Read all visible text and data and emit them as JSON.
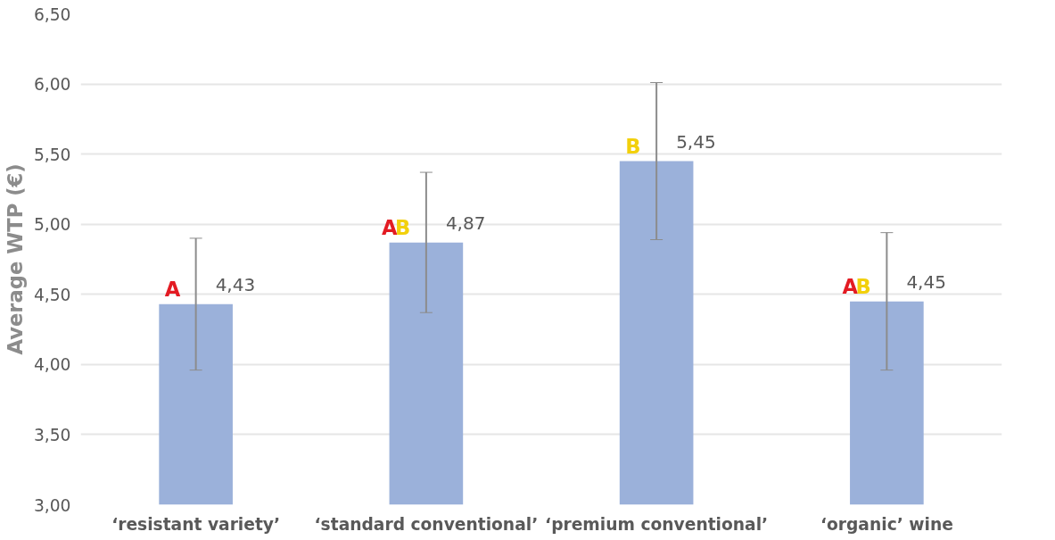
{
  "chart_data": {
    "type": "bar",
    "ylabel": "Average WTP (€)",
    "categories": [
      "‘resistant variety’",
      "‘standard conventional’",
      "‘premium conventional’",
      "‘organic’ wine"
    ],
    "values": [
      4.43,
      4.87,
      5.45,
      4.45
    ],
    "color": "#9bb1da",
    "errors": [
      [
        3.96,
        4.9
      ],
      [
        4.37,
        5.37
      ],
      [
        4.89,
        6.01
      ],
      [
        3.96,
        4.94
      ]
    ],
    "value_labels": [
      "4,43",
      "4,87",
      "5,45",
      "4,45"
    ],
    "annotations": [
      {
        "text": "A",
        "x": "‘resistant variety’",
        "y": 4.43
      },
      {
        "text": "AB",
        "x": "‘standard conventional’",
        "y": 4.87
      },
      {
        "text": "B",
        "x": "‘premium conventional’",
        "y": 5.45
      },
      {
        "text": "AB",
        "x": "‘organic’ wine",
        "y": 4.45
      }
    ],
    "ylim": [
      3,
      6.5
    ],
    "yticks": [
      {
        "value": 3,
        "label": "3,00"
      },
      {
        "value": 3.5,
        "label": "3,50"
      },
      {
        "value": 4,
        "label": "4,00"
      },
      {
        "value": 4.5,
        "label": "4,50"
      },
      {
        "value": 5,
        "label": "5,00"
      },
      {
        "value": 5.5,
        "label": "5,50"
      },
      {
        "value": 6,
        "label": "6,00"
      },
      {
        "value": 6.5,
        "label": "6,50"
      }
    ],
    "grid": "y"
  }
}
